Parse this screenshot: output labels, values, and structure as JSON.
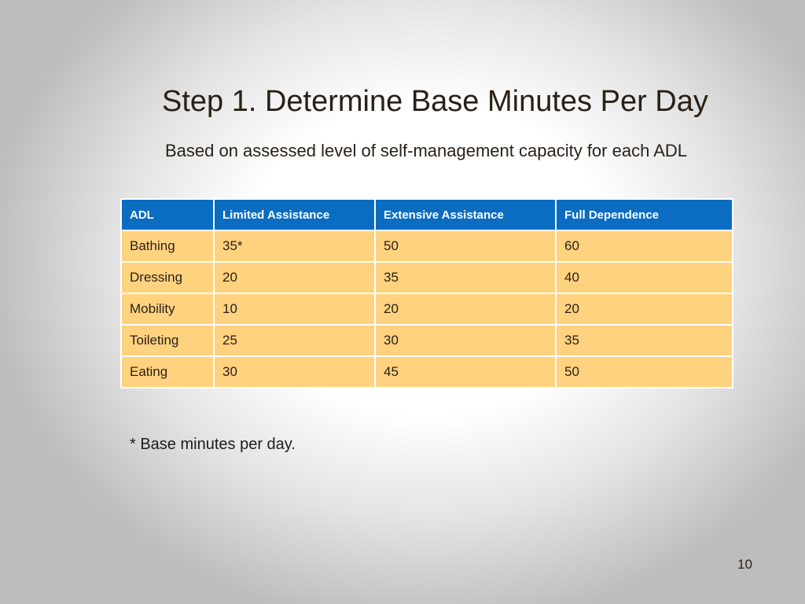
{
  "slide": {
    "title": "Step 1. Determine Base Minutes Per Day",
    "subtitle": "Based on assessed level of self-management capacity for each ADL",
    "table": {
      "headers": [
        "ADL",
        "Limited Assistance",
        "Extensive Assistance",
        "Full Dependence"
      ],
      "rows": [
        [
          "Bathing",
          "35*",
          "50",
          "60"
        ],
        [
          "Dressing",
          "20",
          "35",
          "40"
        ],
        [
          "Mobility",
          "10",
          "20",
          "20"
        ],
        [
          "Toileting",
          "25",
          "30",
          "35"
        ],
        [
          "Eating",
          "30",
          "45",
          "50"
        ]
      ]
    },
    "footnote": "* Base minutes per day.",
    "page_number": "10"
  },
  "colors": {
    "header_background": "#0a6dc2",
    "header_text": "#ffffff",
    "cell_background": "#ffd27f",
    "text": "#2a2118"
  }
}
